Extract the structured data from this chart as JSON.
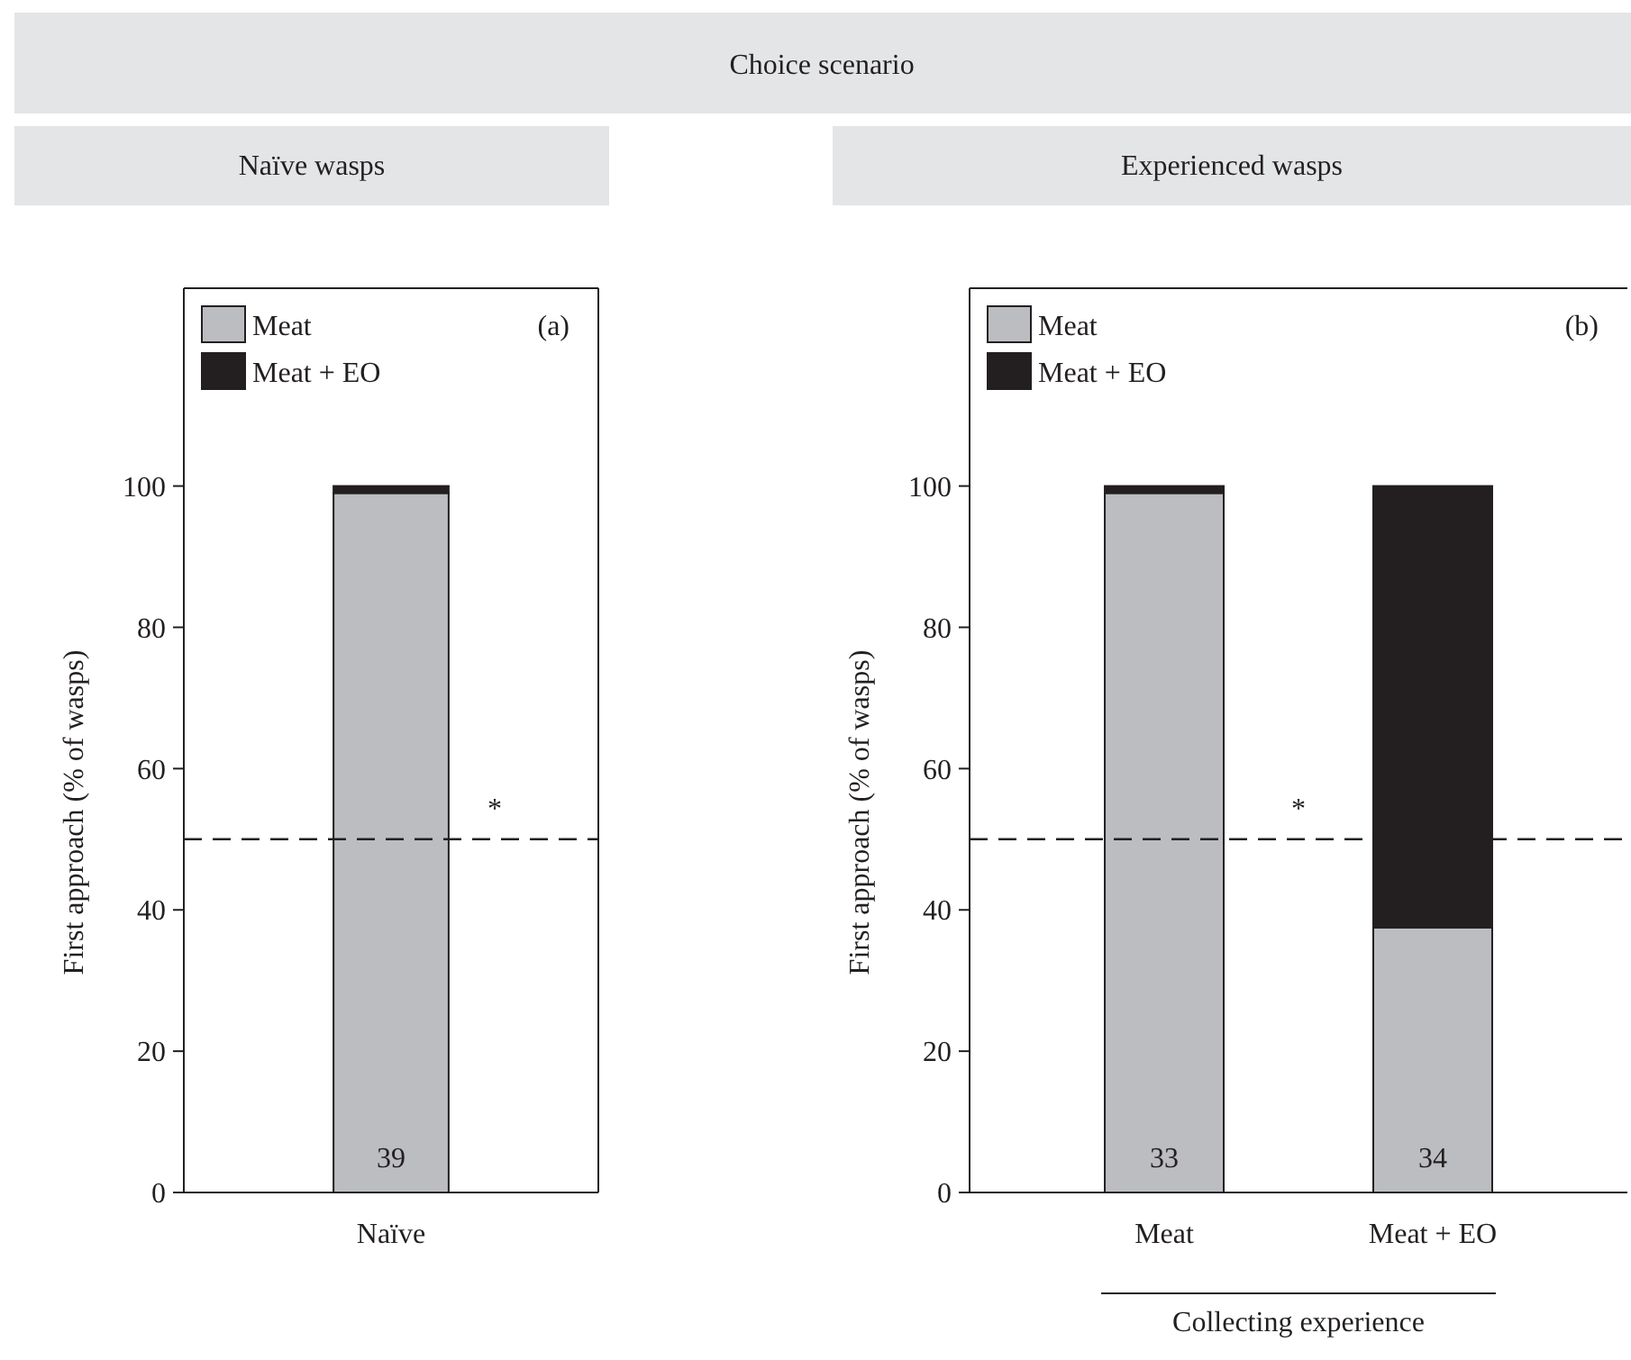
{
  "chart_data": [
    {
      "type": "bar",
      "subtitle": "Naïve wasps",
      "ylabel": "First approach (% of wasps)",
      "categories": [
        "Naïve"
      ],
      "stacked": true,
      "ylim": [
        0,
        128
      ],
      "yticks": [
        0,
        20,
        40,
        60,
        80,
        100
      ],
      "legend": "top left",
      "grid": false,
      "series": [
        {
          "name": "Meat",
          "color": "#bcbdc1",
          "values": [
            99
          ]
        },
        {
          "name": "Meat + EO",
          "color": "#231f20",
          "values": [
            1
          ]
        }
      ],
      "ref_lines": [
        {
          "axis": "y",
          "value": 50,
          "line_style": "dashed",
          "color": "#231f20"
        }
      ],
      "annotations": [
        "(a)",
        "*",
        "39",
        "Choice scenario"
      ]
    },
    {
      "type": "bar",
      "subtitle": "Experienced wasps",
      "ylabel": "First approach (% of wasps)",
      "xlabel": "Collecting experience",
      "categories": [
        "Meat",
        "Meat + EO"
      ],
      "stacked": true,
      "ylim": [
        0,
        128
      ],
      "yticks": [
        0,
        20,
        40,
        60,
        80,
        100
      ],
      "legend": "top left",
      "grid": false,
      "series": [
        {
          "name": "Meat",
          "color": "#bcbdc1",
          "values": [
            99,
            37.5
          ]
        },
        {
          "name": "Meat + EO",
          "color": "#231f20",
          "values": [
            1,
            62.5
          ]
        }
      ],
      "ref_lines": [
        {
          "axis": "y",
          "value": 50,
          "line_style": "dashed",
          "color": "#231f20"
        }
      ],
      "annotations": [
        "(b)",
        "*",
        "33",
        "34"
      ]
    }
  ]
}
